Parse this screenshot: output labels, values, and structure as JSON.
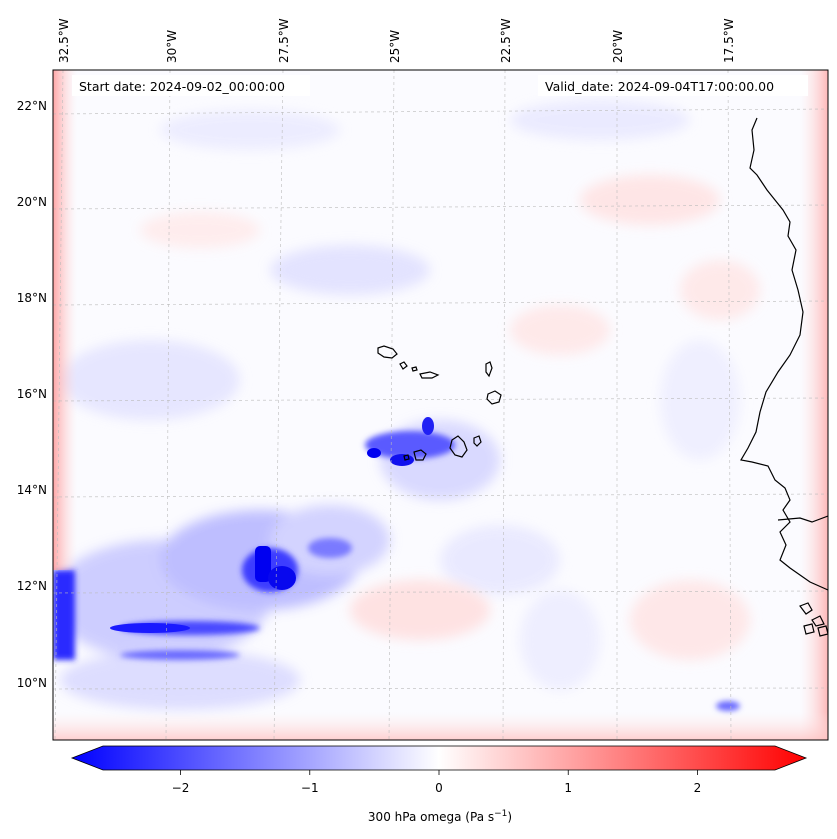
{
  "header": {
    "start_date": "Start date: 2024-09-02_00:00:00",
    "valid_date": "Valid_date: 2024-09-04T17:00:00.00"
  },
  "longitude_labels": [
    "32.5°W",
    "30°W",
    "27.5°W",
    "25°W",
    "22.5°W",
    "20°W",
    "17.5°W"
  ],
  "latitude_labels": [
    "22°N",
    "20°N",
    "18°N",
    "16°N",
    "14°N",
    "12°N",
    "10°N"
  ],
  "colorbar": {
    "tick_labels": [
      "−2",
      "−1",
      "0",
      "1",
      "2"
    ],
    "ticks": [
      -2,
      -1,
      0,
      1,
      2
    ],
    "range": [
      -2.6,
      2.6
    ],
    "label_main": "300 hPa omega (Pa s",
    "label_exp": "−1",
    "label_close": ")",
    "colors": {
      "negative": "#0000ff",
      "zero": "#ffffff",
      "positive": "#ff0000"
    }
  },
  "map": {
    "region": "Cape Verde / West Africa coast",
    "field": "300 hPa omega"
  }
}
